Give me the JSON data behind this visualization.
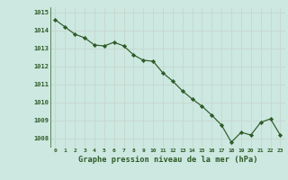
{
  "x": [
    0,
    1,
    2,
    3,
    4,
    5,
    6,
    7,
    8,
    9,
    10,
    11,
    12,
    13,
    14,
    15,
    16,
    17,
    18,
    19,
    20,
    21,
    22,
    23
  ],
  "y": [
    1014.6,
    1014.2,
    1013.8,
    1013.6,
    1013.2,
    1013.15,
    1013.35,
    1013.15,
    1012.65,
    1012.35,
    1012.3,
    1011.65,
    1011.2,
    1010.65,
    1010.2,
    1009.8,
    1009.3,
    1008.75,
    1007.8,
    1008.35,
    1008.2,
    1008.9,
    1009.1,
    1008.2
  ],
  "ylim": [
    1007.5,
    1015.3
  ],
  "yticks": [
    1008,
    1009,
    1010,
    1011,
    1012,
    1013,
    1014,
    1015
  ],
  "xticks": [
    0,
    1,
    2,
    3,
    4,
    5,
    6,
    7,
    8,
    9,
    10,
    11,
    12,
    13,
    14,
    15,
    16,
    17,
    18,
    19,
    20,
    21,
    22,
    23
  ],
  "xlabel": "Graphe pression niveau de la mer (hPa)",
  "line_color": "#2d5a27",
  "marker_color": "#2d5a27",
  "bg_color": "#cce8e0",
  "grid_color": "#c8d8d0",
  "tick_label_color": "#2d5a27",
  "xlabel_color": "#2d5a27"
}
